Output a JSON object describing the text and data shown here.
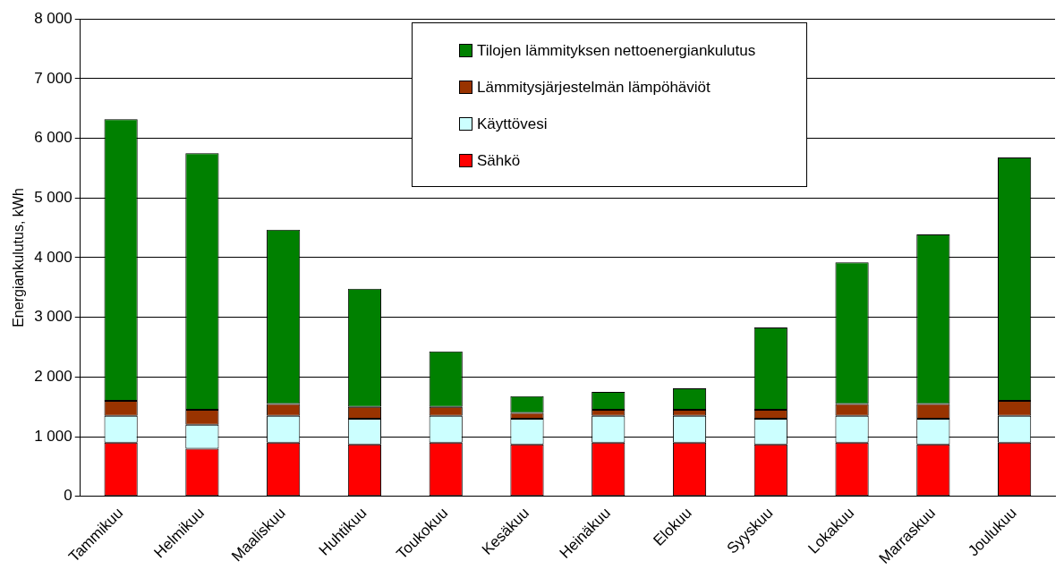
{
  "chart_data": {
    "type": "bar",
    "stacked": true,
    "ylabel": "Energiankulutus, kWh",
    "categories": [
      "Tammikuu",
      "Helmikuu",
      "Maaliskuu",
      "Huhtikuu",
      "Toukokuu",
      "Kesäkuu",
      "Heinäkuu",
      "Elokuu",
      "Syyskuu",
      "Lokakuu",
      "Marraskuu",
      "Joulukuu"
    ],
    "series": [
      {
        "name": "Sähkö",
        "color": "#ff0000",
        "values": [
          900,
          800,
          900,
          870,
          900,
          870,
          900,
          900,
          870,
          900,
          870,
          900
        ]
      },
      {
        "name": "Käyttövesi",
        "color": "#ccffff",
        "values": [
          450,
          400,
          450,
          430,
          450,
          430,
          450,
          450,
          430,
          450,
          430,
          450
        ]
      },
      {
        "name": "Lämmitysjärjestelmän lämpöhäviöt",
        "color": "#993300",
        "values": [
          250,
          250,
          200,
          200,
          150,
          100,
          100,
          100,
          150,
          200,
          250,
          250
        ]
      },
      {
        "name": "Tilojen lämmityksen nettoenergiankulutus",
        "color": "#008000",
        "values": [
          4720,
          4300,
          2920,
          1980,
          930,
          280,
          300,
          360,
          1380,
          2370,
          2840,
          4080
        ]
      }
    ],
    "ylim": [
      0,
      8000
    ],
    "yticks": [
      0,
      {
        "value": 1000,
        "label": "1 000"
      },
      {
        "value": 2000,
        "label": "2 000"
      },
      {
        "value": 3000,
        "label": "3 000"
      },
      {
        "value": 4000,
        "label": "4 000"
      },
      {
        "value": 5000,
        "label": "5 000"
      },
      {
        "value": 6000,
        "label": "6 000"
      },
      {
        "value": 7000,
        "label": "7 000"
      },
      {
        "value": 8000,
        "label": "8 000"
      }
    ],
    "grid": "y",
    "legend": "top"
  }
}
